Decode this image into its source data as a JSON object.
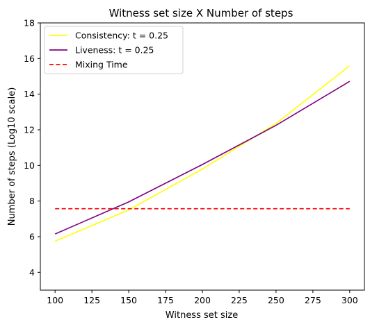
{
  "chart_data": {
    "type": "line",
    "title": "Witness set size X Number of steps",
    "xlabel": "Witness set size",
    "ylabel": "Number of steps (Log10 scale)",
    "xlim": [
      90,
      310
    ],
    "ylim": [
      3,
      18
    ],
    "xticks": [
      100,
      125,
      150,
      175,
      200,
      225,
      250,
      275,
      300
    ],
    "yticks": [
      4,
      6,
      8,
      10,
      12,
      14,
      16,
      18
    ],
    "grid": false,
    "legend_position": "top-left",
    "series": [
      {
        "name": "Consistency: t = 0.25",
        "color": "#ffff00",
        "style": "solid",
        "x": [
          100,
          150,
          200,
          250,
          300
        ],
        "y": [
          5.75,
          7.5,
          9.8,
          12.35,
          15.6
        ]
      },
      {
        "name": "Liveness: t = 0.25",
        "color": "#800080",
        "style": "solid",
        "x": [
          100,
          150,
          200,
          250,
          300
        ],
        "y": [
          6.15,
          7.95,
          10.05,
          12.25,
          14.72
        ]
      },
      {
        "name": "Mixing Time",
        "color": "#ff0000",
        "style": "dashed",
        "x": [
          100,
          300
        ],
        "y": [
          7.57,
          7.57
        ]
      }
    ]
  }
}
